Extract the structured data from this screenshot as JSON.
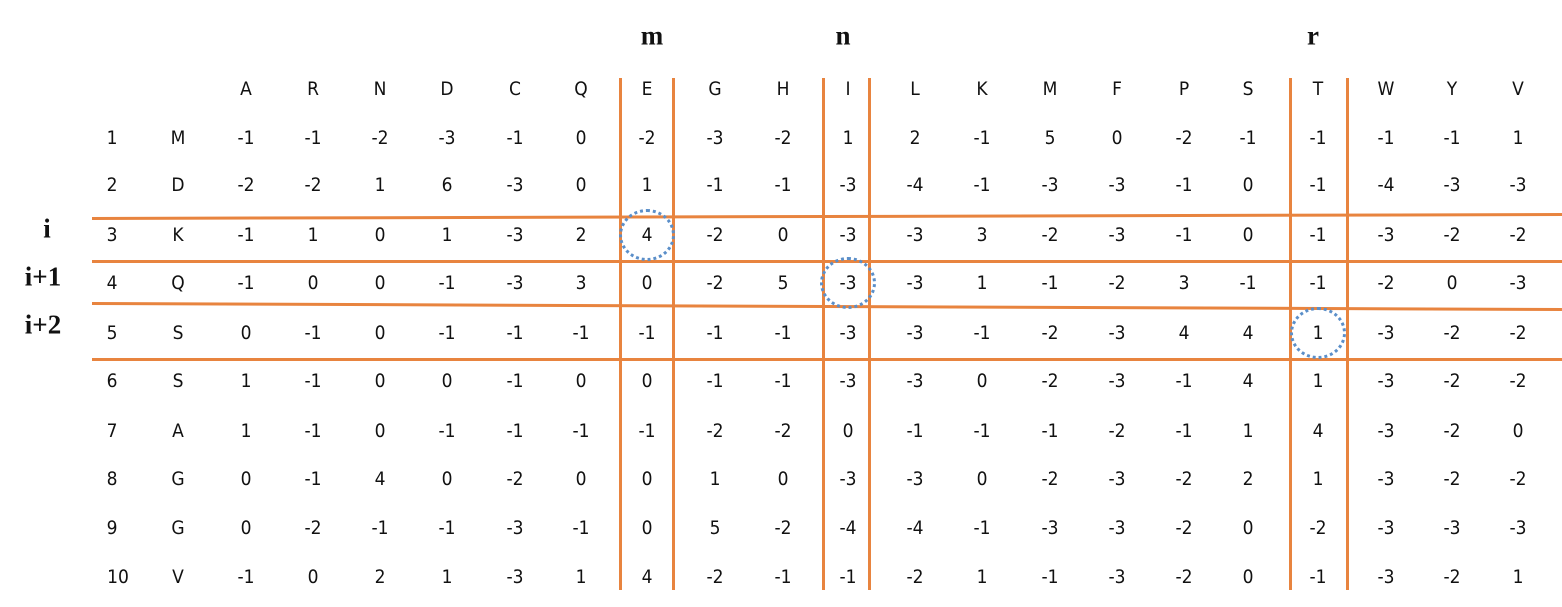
{
  "top_labels": [
    {
      "text": "m",
      "column": "E"
    },
    {
      "text": "n",
      "column": "I"
    },
    {
      "text": "r",
      "column": "T"
    }
  ],
  "side_labels": [
    {
      "text": "i",
      "row": 3
    },
    {
      "text": "i+1",
      "row": 4
    },
    {
      "text": "i+2",
      "row": 5
    }
  ],
  "columns": [
    "A",
    "R",
    "N",
    "D",
    "C",
    "Q",
    "E",
    "G",
    "H",
    "I",
    "L",
    "K",
    "M",
    "F",
    "P",
    "S",
    "T",
    "W",
    "Y",
    "V"
  ],
  "rows": [
    {
      "index": "1",
      "residue": "M",
      "values": [
        "-1",
        "-1",
        "-2",
        "-3",
        "-1",
        "0",
        "-2",
        "-3",
        "-2",
        "1",
        "2",
        "-1",
        "5",
        "0",
        "-2",
        "-1",
        "-1",
        "-1",
        "-1",
        "1"
      ]
    },
    {
      "index": "2",
      "residue": "D",
      "values": [
        "-2",
        "-2",
        "1",
        "6",
        "-3",
        "0",
        "1",
        "-1",
        "-1",
        "-3",
        "-4",
        "-1",
        "-3",
        "-3",
        "-1",
        "0",
        "-1",
        "-4",
        "-3",
        "-3"
      ]
    },
    {
      "index": "3",
      "residue": "K",
      "values": [
        "-1",
        "1",
        "0",
        "1",
        "-3",
        "2",
        "4",
        "-2",
        "0",
        "-3",
        "-3",
        "3",
        "-2",
        "-3",
        "-1",
        "0",
        "-1",
        "-3",
        "-2",
        "-2"
      ]
    },
    {
      "index": "4",
      "residue": "Q",
      "values": [
        "-1",
        "0",
        "0",
        "-1",
        "-3",
        "3",
        "0",
        "-2",
        "5",
        "-3",
        "-3",
        "1",
        "-1",
        "-2",
        "3",
        "-1",
        "-1",
        "-2",
        "0",
        "-3"
      ]
    },
    {
      "index": "5",
      "residue": "S",
      "values": [
        "0",
        "-1",
        "0",
        "-1",
        "-1",
        "-1",
        "-1",
        "-1",
        "-1",
        "-3",
        "-3",
        "-1",
        "-2",
        "-3",
        "4",
        "4",
        "1",
        "-3",
        "-2",
        "-2"
      ]
    },
    {
      "index": "6",
      "residue": "S",
      "values": [
        "1",
        "-1",
        "0",
        "0",
        "-1",
        "0",
        "0",
        "-1",
        "-1",
        "-3",
        "-3",
        "0",
        "-2",
        "-3",
        "-1",
        "4",
        "1",
        "-3",
        "-2",
        "-2"
      ]
    },
    {
      "index": "7",
      "residue": "A",
      "values": [
        "1",
        "-1",
        "0",
        "-1",
        "-1",
        "-1",
        "-1",
        "-2",
        "-2",
        "0",
        "-1",
        "-1",
        "-1",
        "-2",
        "-1",
        "1",
        "4",
        "-3",
        "-2",
        "0"
      ]
    },
    {
      "index": "8",
      "residue": "G",
      "values": [
        "0",
        "-1",
        "4",
        "0",
        "-2",
        "0",
        "0",
        "1",
        "0",
        "-3",
        "-3",
        "0",
        "-2",
        "-3",
        "-2",
        "2",
        "1",
        "-3",
        "-2",
        "-2"
      ]
    },
    {
      "index": "9",
      "residue": "G",
      "values": [
        "0",
        "-2",
        "-1",
        "-1",
        "-3",
        "-1",
        "0",
        "5",
        "-2",
        "-4",
        "-4",
        "-1",
        "-3",
        "-3",
        "-2",
        "0",
        "-2",
        "-3",
        "-3",
        "-3"
      ]
    },
    {
      "index": "10",
      "residue": "V",
      "values": [
        "-1",
        "0",
        "2",
        "1",
        "-3",
        "1",
        "4",
        "-2",
        "-1",
        "-1",
        "-2",
        "1",
        "-1",
        "-3",
        "-2",
        "0",
        "-1",
        "-3",
        "-2",
        "1"
      ]
    }
  ],
  "highlighted_cells": [
    {
      "row": 3,
      "column": "E"
    },
    {
      "row": 4,
      "column": "I"
    },
    {
      "row": 5,
      "column": "T"
    }
  ],
  "colors": {
    "grid_lines": "#E8843F",
    "highlight_circle": "#5B8FC9"
  }
}
